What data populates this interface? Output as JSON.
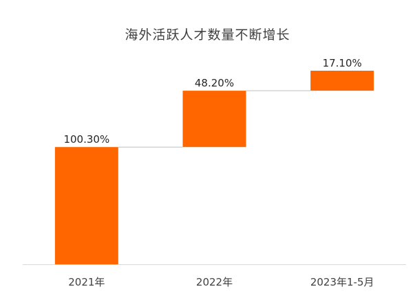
{
  "chart_data": {
    "type": "bar",
    "subtype": "waterfall",
    "title": "海外活跃人才数量不断增长",
    "categories": [
      "2021年",
      "2022年",
      "2023年1-5月"
    ],
    "values": [
      100.3,
      48.2,
      17.1
    ],
    "data_labels": [
      "100.30%",
      "48.20%",
      "17.10%"
    ],
    "ylim": [
      0,
      165.6
    ],
    "bar_color": "#FF6600",
    "connector_color": "#BFBFBF",
    "axis_color": "#D9D9D9",
    "grid": false,
    "legend": "none"
  }
}
